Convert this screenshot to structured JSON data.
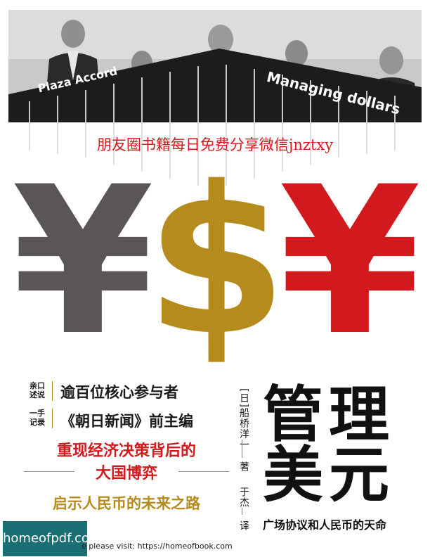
{
  "photo": {
    "label_left": "Plaza Accord",
    "label_right": "Managing dollars"
  },
  "watermark": "朋友圈书籍每日免费分享微信jnztxy",
  "symbols": {
    "yen_left": "¥",
    "dollar": "$",
    "yuan_right": "¥",
    "colors": {
      "grey": "#5b5656",
      "gold": "#b58b1e",
      "red": "#d21a1e"
    }
  },
  "blurbs": {
    "tag1": "亲口\n述说",
    "line1": "逾百位核心参与者",
    "tag2": "一手\n记录",
    "line2": "《朝日新闻》前主编",
    "red1": "重现经济决策背后的",
    "red2": "大国博弈",
    "gold1": "启示人民币的未来之路"
  },
  "credits": {
    "author": "[日]船桥洋一",
    "zhu": "著",
    "translator": "于杰",
    "yi": "译"
  },
  "title": {
    "row1": "管理",
    "row2": "美元",
    "subtitle": "广场协议和人民币的天命"
  },
  "footer": {
    "badge": "homeofpdf.com",
    "visit": "e please visit: https://homeofbook.com"
  }
}
